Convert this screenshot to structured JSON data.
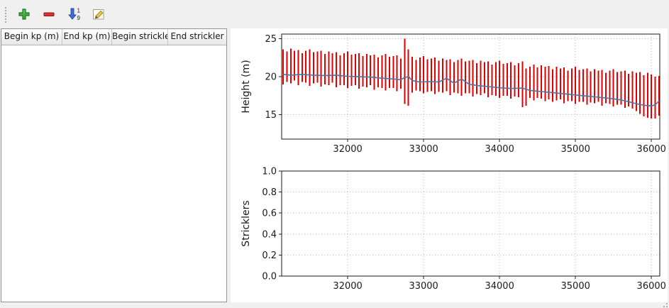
{
  "toolbar": {
    "buttons": [
      {
        "id": "add",
        "icon": "plus-icon"
      },
      {
        "id": "remove",
        "icon": "minus-icon"
      },
      {
        "id": "sort",
        "icon": "sort-numeric-icon"
      },
      {
        "id": "edit",
        "icon": "pencil-icon"
      }
    ]
  },
  "table": {
    "columns": [
      "Begin kp (m)",
      "End kp (m)",
      "Begin strickler",
      "End strickler"
    ],
    "rows": []
  },
  "colors": {
    "bar_red": "#e00000",
    "line_blue": "#4477aa",
    "grid": "#b5b5b5",
    "window_bg": "#f0f0f0"
  },
  "chart_data": [
    {
      "type": "bar",
      "title": "",
      "ylabel": "Height (m)",
      "xlabel": "",
      "xlim": [
        31130,
        36110
      ],
      "ylim": [
        11.8,
        25.6
      ],
      "xticks": [
        32000,
        33000,
        34000,
        35000,
        36000
      ],
      "xtick_labels": [
        "32000",
        "33000",
        "34000",
        "35000",
        "36000"
      ],
      "yticks": [
        15,
        20,
        25
      ],
      "ytick_labels": [
        "15",
        "20",
        "25"
      ],
      "grid": true,
      "legend": "none",
      "bar_color": "#e00000",
      "line_color": "#4477aa",
      "bars": [
        [
          31150,
          19.0,
          23.6
        ],
        [
          31200,
          19.3,
          23.3
        ],
        [
          31250,
          19.1,
          23.7
        ],
        [
          31300,
          19.5,
          23.4
        ],
        [
          31350,
          18.9,
          23.5
        ],
        [
          31400,
          19.3,
          23.1
        ],
        [
          31450,
          19.2,
          23.4
        ],
        [
          31500,
          18.8,
          23.6
        ],
        [
          31550,
          19.1,
          23.2
        ],
        [
          31600,
          19.2,
          23.3
        ],
        [
          31650,
          18.7,
          23.4
        ],
        [
          31700,
          19.0,
          23.0
        ],
        [
          31750,
          18.9,
          23.3
        ],
        [
          31800,
          19.2,
          23.1
        ],
        [
          31850,
          18.6,
          23.2
        ],
        [
          31900,
          18.9,
          22.8
        ],
        [
          31950,
          18.9,
          23.1
        ],
        [
          32000,
          18.5,
          23.3
        ],
        [
          32050,
          18.8,
          22.9
        ],
        [
          32100,
          18.9,
          23.0
        ],
        [
          32150,
          18.4,
          23.1
        ],
        [
          32200,
          18.7,
          22.7
        ],
        [
          32250,
          18.6,
          23.0
        ],
        [
          32300,
          18.9,
          22.8
        ],
        [
          32350,
          18.3,
          22.9
        ],
        [
          32400,
          18.6,
          22.5
        ],
        [
          32450,
          18.5,
          22.8
        ],
        [
          32500,
          18.2,
          23.0
        ],
        [
          32550,
          18.5,
          22.6
        ],
        [
          32600,
          18.5,
          22.7
        ],
        [
          32650,
          18.1,
          22.8
        ],
        [
          32700,
          18.4,
          22.4
        ],
        [
          32750,
          16.4,
          25.0
        ],
        [
          32800,
          16.2,
          23.6
        ],
        [
          32850,
          17.9,
          22.6
        ],
        [
          32900,
          18.2,
          22.2
        ],
        [
          32950,
          18.1,
          22.5
        ],
        [
          33000,
          17.8,
          22.7
        ],
        [
          33050,
          18.0,
          22.3
        ],
        [
          33100,
          18.1,
          22.4
        ],
        [
          33150,
          17.7,
          22.5
        ],
        [
          33200,
          18.0,
          22.1
        ],
        [
          33250,
          17.9,
          22.4
        ],
        [
          33300,
          18.1,
          22.2
        ],
        [
          33350,
          17.6,
          22.3
        ],
        [
          33400,
          17.9,
          21.9
        ],
        [
          33450,
          17.8,
          22.2
        ],
        [
          33500,
          17.5,
          22.4
        ],
        [
          33550,
          17.8,
          22.0
        ],
        [
          33600,
          17.8,
          22.1
        ],
        [
          33650,
          17.4,
          22.2
        ],
        [
          33700,
          17.7,
          21.8
        ],
        [
          33750,
          17.6,
          22.1
        ],
        [
          33800,
          17.8,
          21.9
        ],
        [
          33850,
          17.3,
          22.0
        ],
        [
          33900,
          17.6,
          21.6
        ],
        [
          33950,
          17.5,
          21.9
        ],
        [
          34000,
          17.2,
          22.1
        ],
        [
          34050,
          17.5,
          21.7
        ],
        [
          34100,
          17.5,
          21.8
        ],
        [
          34150,
          17.1,
          21.9
        ],
        [
          34200,
          17.4,
          21.5
        ],
        [
          34250,
          17.3,
          21.8
        ],
        [
          34300,
          16.0,
          22.0
        ],
        [
          34350,
          16.2,
          21.1
        ],
        [
          34400,
          17.2,
          21.3
        ],
        [
          34450,
          16.9,
          21.6
        ],
        [
          34500,
          17.2,
          21.2
        ],
        [
          34550,
          17.1,
          21.5
        ],
        [
          34600,
          16.8,
          21.3
        ],
        [
          34650,
          17.0,
          21.4
        ],
        [
          34700,
          16.7,
          21.0
        ],
        [
          34750,
          16.9,
          21.3
        ],
        [
          34800,
          17.0,
          21.1
        ],
        [
          34850,
          16.5,
          21.2
        ],
        [
          34900,
          16.8,
          20.8
        ],
        [
          34950,
          16.8,
          21.1
        ],
        [
          35000,
          16.4,
          21.3
        ],
        [
          35050,
          16.7,
          20.9
        ],
        [
          35100,
          16.7,
          21.0
        ],
        [
          35150,
          16.3,
          21.1
        ],
        [
          35200,
          16.6,
          20.7
        ],
        [
          35250,
          16.5,
          21.0
        ],
        [
          35300,
          16.7,
          20.8
        ],
        [
          35350,
          16.2,
          20.9
        ],
        [
          35400,
          16.5,
          20.5
        ],
        [
          35450,
          16.4,
          20.8
        ],
        [
          35500,
          16.1,
          21.0
        ],
        [
          35550,
          16.3,
          20.6
        ],
        [
          35600,
          16.3,
          20.7
        ],
        [
          35650,
          15.9,
          20.8
        ],
        [
          35700,
          16.1,
          20.4
        ],
        [
          35750,
          15.8,
          20.7
        ],
        [
          35800,
          15.5,
          20.5
        ],
        [
          35850,
          15.1,
          20.6
        ],
        [
          35900,
          14.8,
          20.2
        ],
        [
          35950,
          14.6,
          20.5
        ],
        [
          36000,
          14.5,
          20.3
        ],
        [
          36050,
          14.5,
          20.0
        ],
        [
          36100,
          14.9,
          20.1
        ]
      ],
      "line": [
        [
          31150,
          20.3
        ],
        [
          31250,
          20.2
        ],
        [
          31400,
          20.3
        ],
        [
          31550,
          20.2
        ],
        [
          31700,
          20.15
        ],
        [
          31850,
          20.2
        ],
        [
          32000,
          20.05
        ],
        [
          32150,
          20.0
        ],
        [
          32300,
          19.95
        ],
        [
          32450,
          19.8
        ],
        [
          32600,
          19.7
        ],
        [
          32700,
          19.6
        ],
        [
          32750,
          19.9
        ],
        [
          32800,
          20.0
        ],
        [
          32850,
          19.5
        ],
        [
          32950,
          19.3
        ],
        [
          33100,
          19.35
        ],
        [
          33200,
          19.3
        ],
        [
          33300,
          19.8
        ],
        [
          33400,
          19.15
        ],
        [
          33500,
          19.7
        ],
        [
          33600,
          19.0
        ],
        [
          33700,
          18.85
        ],
        [
          33850,
          18.7
        ],
        [
          34000,
          18.55
        ],
        [
          34150,
          18.45
        ],
        [
          34300,
          18.5
        ],
        [
          34400,
          18.2
        ],
        [
          34550,
          18.05
        ],
        [
          34700,
          17.9
        ],
        [
          34850,
          17.75
        ],
        [
          35000,
          17.6
        ],
        [
          35150,
          17.45
        ],
        [
          35300,
          17.3
        ],
        [
          35450,
          17.15
        ],
        [
          35600,
          16.95
        ],
        [
          35700,
          16.7
        ],
        [
          35800,
          16.45
        ],
        [
          35900,
          16.25
        ],
        [
          36000,
          16.15
        ],
        [
          36050,
          16.3
        ],
        [
          36100,
          16.8
        ]
      ]
    },
    {
      "type": "bar",
      "title": "",
      "ylabel": "Stricklers",
      "xlabel": "",
      "xlim": [
        31130,
        36110
      ],
      "ylim": [
        0.0,
        1.0
      ],
      "xticks": [
        32000,
        33000,
        34000,
        35000,
        36000
      ],
      "xtick_labels": [
        "32000",
        "33000",
        "34000",
        "35000",
        "36000"
      ],
      "yticks": [
        0.0,
        0.2,
        0.4,
        0.6,
        0.8,
        1.0
      ],
      "ytick_labels": [
        "0.0",
        "0.2",
        "0.4",
        "0.6",
        "0.8",
        "1.0"
      ],
      "grid": true,
      "legend": "none",
      "bars": [],
      "line": null
    }
  ]
}
